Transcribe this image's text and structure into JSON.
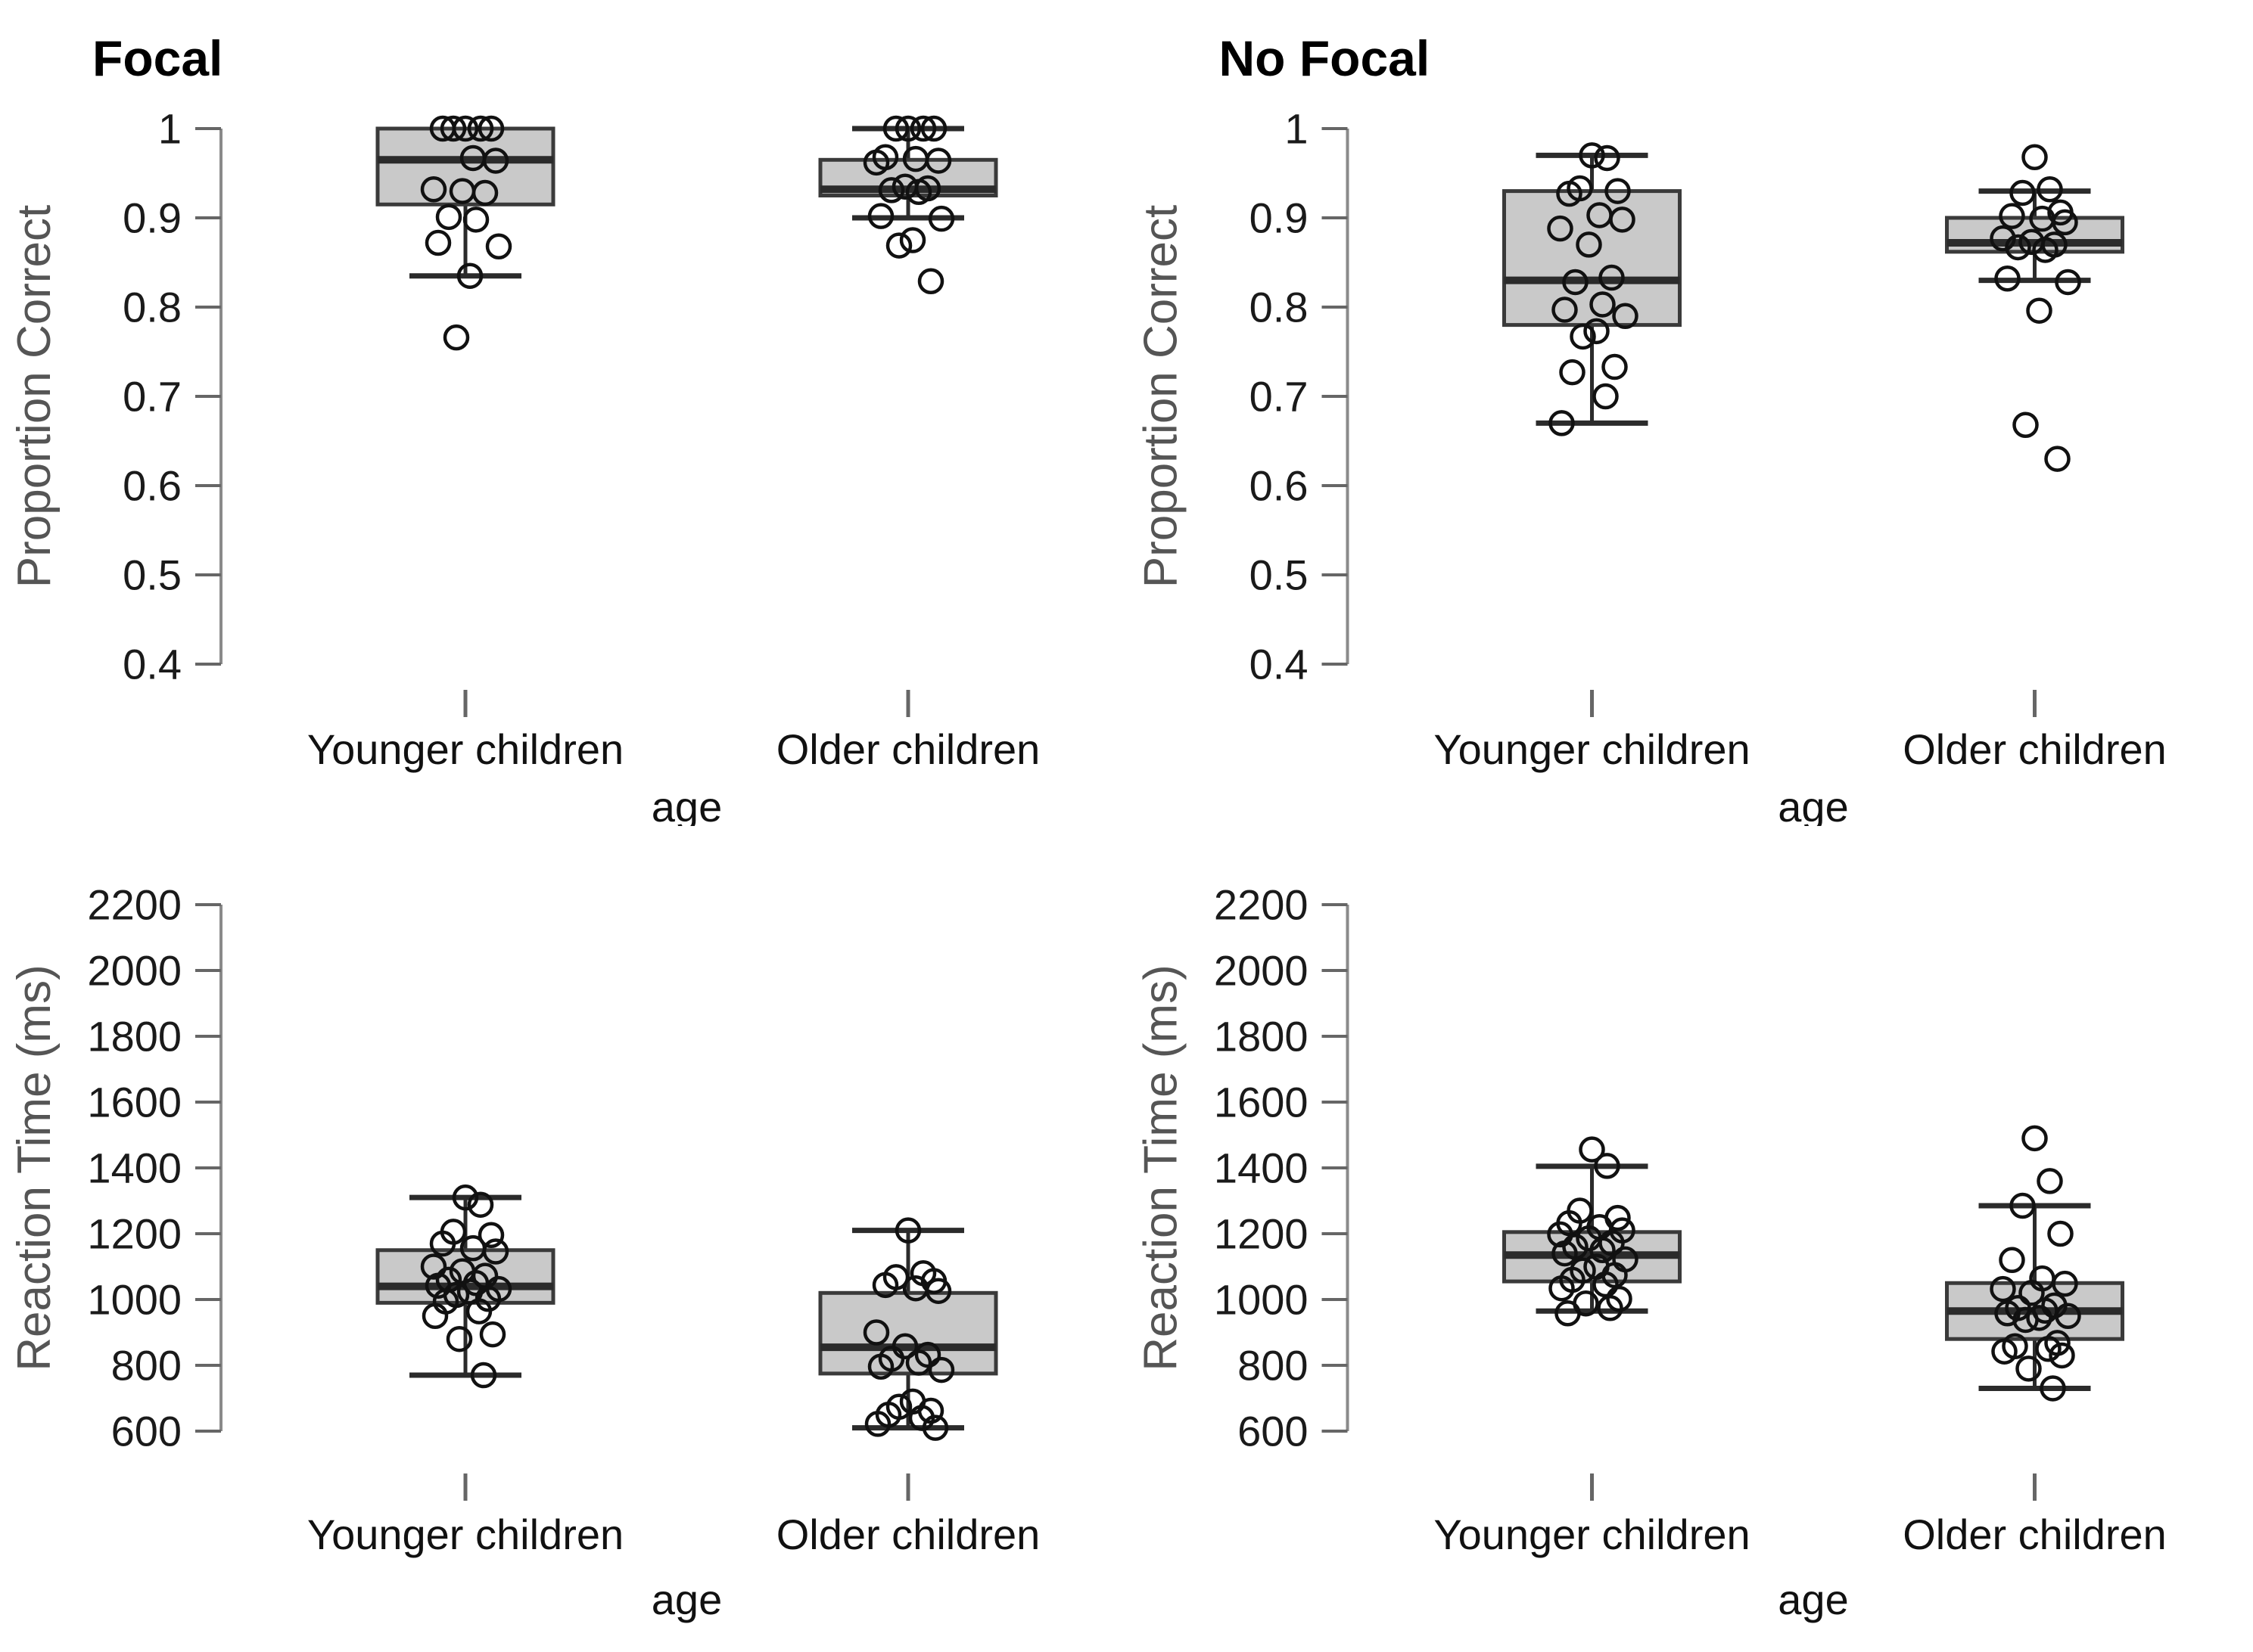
{
  "style": {
    "background": "#ffffff",
    "box_fill": "#c9c9c9",
    "box_stroke": "#3a3a3a",
    "median_color": "#2b2b2b",
    "whisker_color": "#2b2b2b",
    "point_color": "#111111",
    "axis_color": "#8a8a8a",
    "tick_color": "#666666",
    "tick_label_color": "#1a1a1a",
    "label_color": "#111111",
    "ylabel_color": "#555555",
    "title_color": "#000000"
  },
  "chart_data": [
    {
      "id": "focal-accuracy",
      "type": "boxplot",
      "title": "Focal",
      "xlabel": "age",
      "ylabel": "Proportion Correct",
      "ylim": [
        0.4,
        1
      ],
      "yticks": [
        1,
        0.9,
        0.8,
        0.7,
        0.6,
        0.5,
        0.4
      ],
      "ytick_labels": [
        "1",
        "0.9",
        "0.8",
        "0.7",
        "0.6",
        "0.5",
        "0.4"
      ],
      "grid": false,
      "legend": "none",
      "categories": [
        "Younger children",
        "Older children"
      ],
      "series": [
        {
          "name": "Younger children",
          "box": {
            "lower_whisker": 0.835,
            "q1": 0.915,
            "median": 0.965,
            "q3": 1.0,
            "upper_whisker": 1.0
          },
          "points": [
            1,
            1,
            1,
            1,
            1,
            0.967,
            0.964,
            0.932,
            0.93,
            0.928,
            0.901,
            0.898,
            0.872,
            0.868,
            0.835,
            0.766
          ]
        },
        {
          "name": "Older children",
          "box": {
            "lower_whisker": 0.9,
            "q1": 0.925,
            "median": 0.932,
            "q3": 0.965,
            "upper_whisker": 1.0
          },
          "points": [
            1,
            1,
            1,
            1,
            0.968,
            0.966,
            0.964,
            0.962,
            0.935,
            0.933,
            0.931,
            0.929,
            0.902,
            0.899,
            0.875,
            0.869,
            0.829
          ]
        }
      ]
    },
    {
      "id": "nofocal-accuracy",
      "type": "boxplot",
      "title": "No Focal",
      "xlabel": "age",
      "ylabel": "Proportion Correct",
      "ylim": [
        0.4,
        1
      ],
      "yticks": [
        1,
        0.9,
        0.8,
        0.7,
        0.6,
        0.5,
        0.4
      ],
      "ytick_labels": [
        "1",
        "0.9",
        "0.8",
        "0.7",
        "0.6",
        "0.5",
        "0.4"
      ],
      "grid": false,
      "legend": "none",
      "categories": [
        "Younger children",
        "Older children"
      ],
      "series": [
        {
          "name": "Younger children",
          "box": {
            "lower_whisker": 0.67,
            "q1": 0.78,
            "median": 0.83,
            "q3": 0.93,
            "upper_whisker": 0.97
          },
          "points": [
            0.97,
            0.967,
            0.933,
            0.93,
            0.927,
            0.903,
            0.898,
            0.888,
            0.87,
            0.833,
            0.828,
            0.803,
            0.797,
            0.79,
            0.773,
            0.767,
            0.733,
            0.727,
            0.7,
            0.67
          ]
        },
        {
          "name": "Older children",
          "box": {
            "lower_whisker": 0.83,
            "q1": 0.862,
            "median": 0.872,
            "q3": 0.9,
            "upper_whisker": 0.93
          },
          "points": [
            0.968,
            0.932,
            0.928,
            0.906,
            0.902,
            0.899,
            0.895,
            0.877,
            0.873,
            0.87,
            0.867,
            0.864,
            0.832,
            0.828,
            0.796,
            0.668,
            0.63
          ]
        }
      ]
    },
    {
      "id": "focal-rt",
      "type": "boxplot",
      "title": "",
      "xlabel": "age",
      "ylabel": "Reaction Time (ms)",
      "ylim": [
        600,
        2200
      ],
      "yticks": [
        2200,
        2000,
        1800,
        1600,
        1400,
        1200,
        1000,
        800,
        600
      ],
      "ytick_labels": [
        "2200",
        "2000",
        "1800",
        "1600",
        "1400",
        "1200",
        "1000",
        "800",
        "600"
      ],
      "grid": false,
      "legend": "none",
      "categories": [
        "Younger children",
        "Older children"
      ],
      "series": [
        {
          "name": "Younger children",
          "box": {
            "lower_whisker": 770,
            "q1": 990,
            "median": 1040,
            "q3": 1150,
            "upper_whisker": 1310
          },
          "points": [
            1310,
            1288,
            1206,
            1196,
            1170,
            1156,
            1146,
            1100,
            1086,
            1072,
            1060,
            1050,
            1042,
            1032,
            1024,
            1014,
            1002,
            994,
            964,
            950,
            894,
            880,
            770
          ]
        },
        {
          "name": "Older children",
          "box": {
            "lower_whisker": 610,
            "q1": 775,
            "median": 855,
            "q3": 1020,
            "upper_whisker": 1210
          },
          "points": [
            1210,
            1080,
            1068,
            1056,
            1044,
            1034,
            1026,
            900,
            858,
            832,
            820,
            808,
            796,
            786,
            690,
            674,
            662,
            650,
            640,
            622,
            610
          ]
        }
      ]
    },
    {
      "id": "nofocal-rt",
      "type": "boxplot",
      "title": "",
      "xlabel": "age",
      "ylabel": "Reaction Time (ms)",
      "ylim": [
        600,
        2200
      ],
      "yticks": [
        2200,
        2000,
        1800,
        1600,
        1400,
        1200,
        1000,
        800,
        600
      ],
      "ytick_labels": [
        "2200",
        "2000",
        "1800",
        "1600",
        "1400",
        "1200",
        "1000",
        "800",
        "600"
      ],
      "grid": false,
      "legend": "none",
      "categories": [
        "Younger children",
        "Older children"
      ],
      "series": [
        {
          "name": "Younger children",
          "box": {
            "lower_whisker": 965,
            "q1": 1055,
            "median": 1135,
            "q3": 1205,
            "upper_whisker": 1405
          },
          "points": [
            1456,
            1406,
            1270,
            1248,
            1232,
            1220,
            1210,
            1198,
            1186,
            1172,
            1160,
            1150,
            1140,
            1122,
            1100,
            1088,
            1074,
            1060,
            1046,
            1034,
            1002,
            988,
            974,
            958
          ]
        },
        {
          "name": "Older children",
          "box": {
            "lower_whisker": 730,
            "q1": 880,
            "median": 965,
            "q3": 1050,
            "upper_whisker": 1285
          },
          "points": [
            1490,
            1360,
            1285,
            1200,
            1120,
            1064,
            1048,
            1032,
            1020,
            982,
            974,
            966,
            958,
            950,
            944,
            938,
            868,
            858,
            850,
            842,
            830,
            790,
            730
          ]
        }
      ]
    }
  ]
}
